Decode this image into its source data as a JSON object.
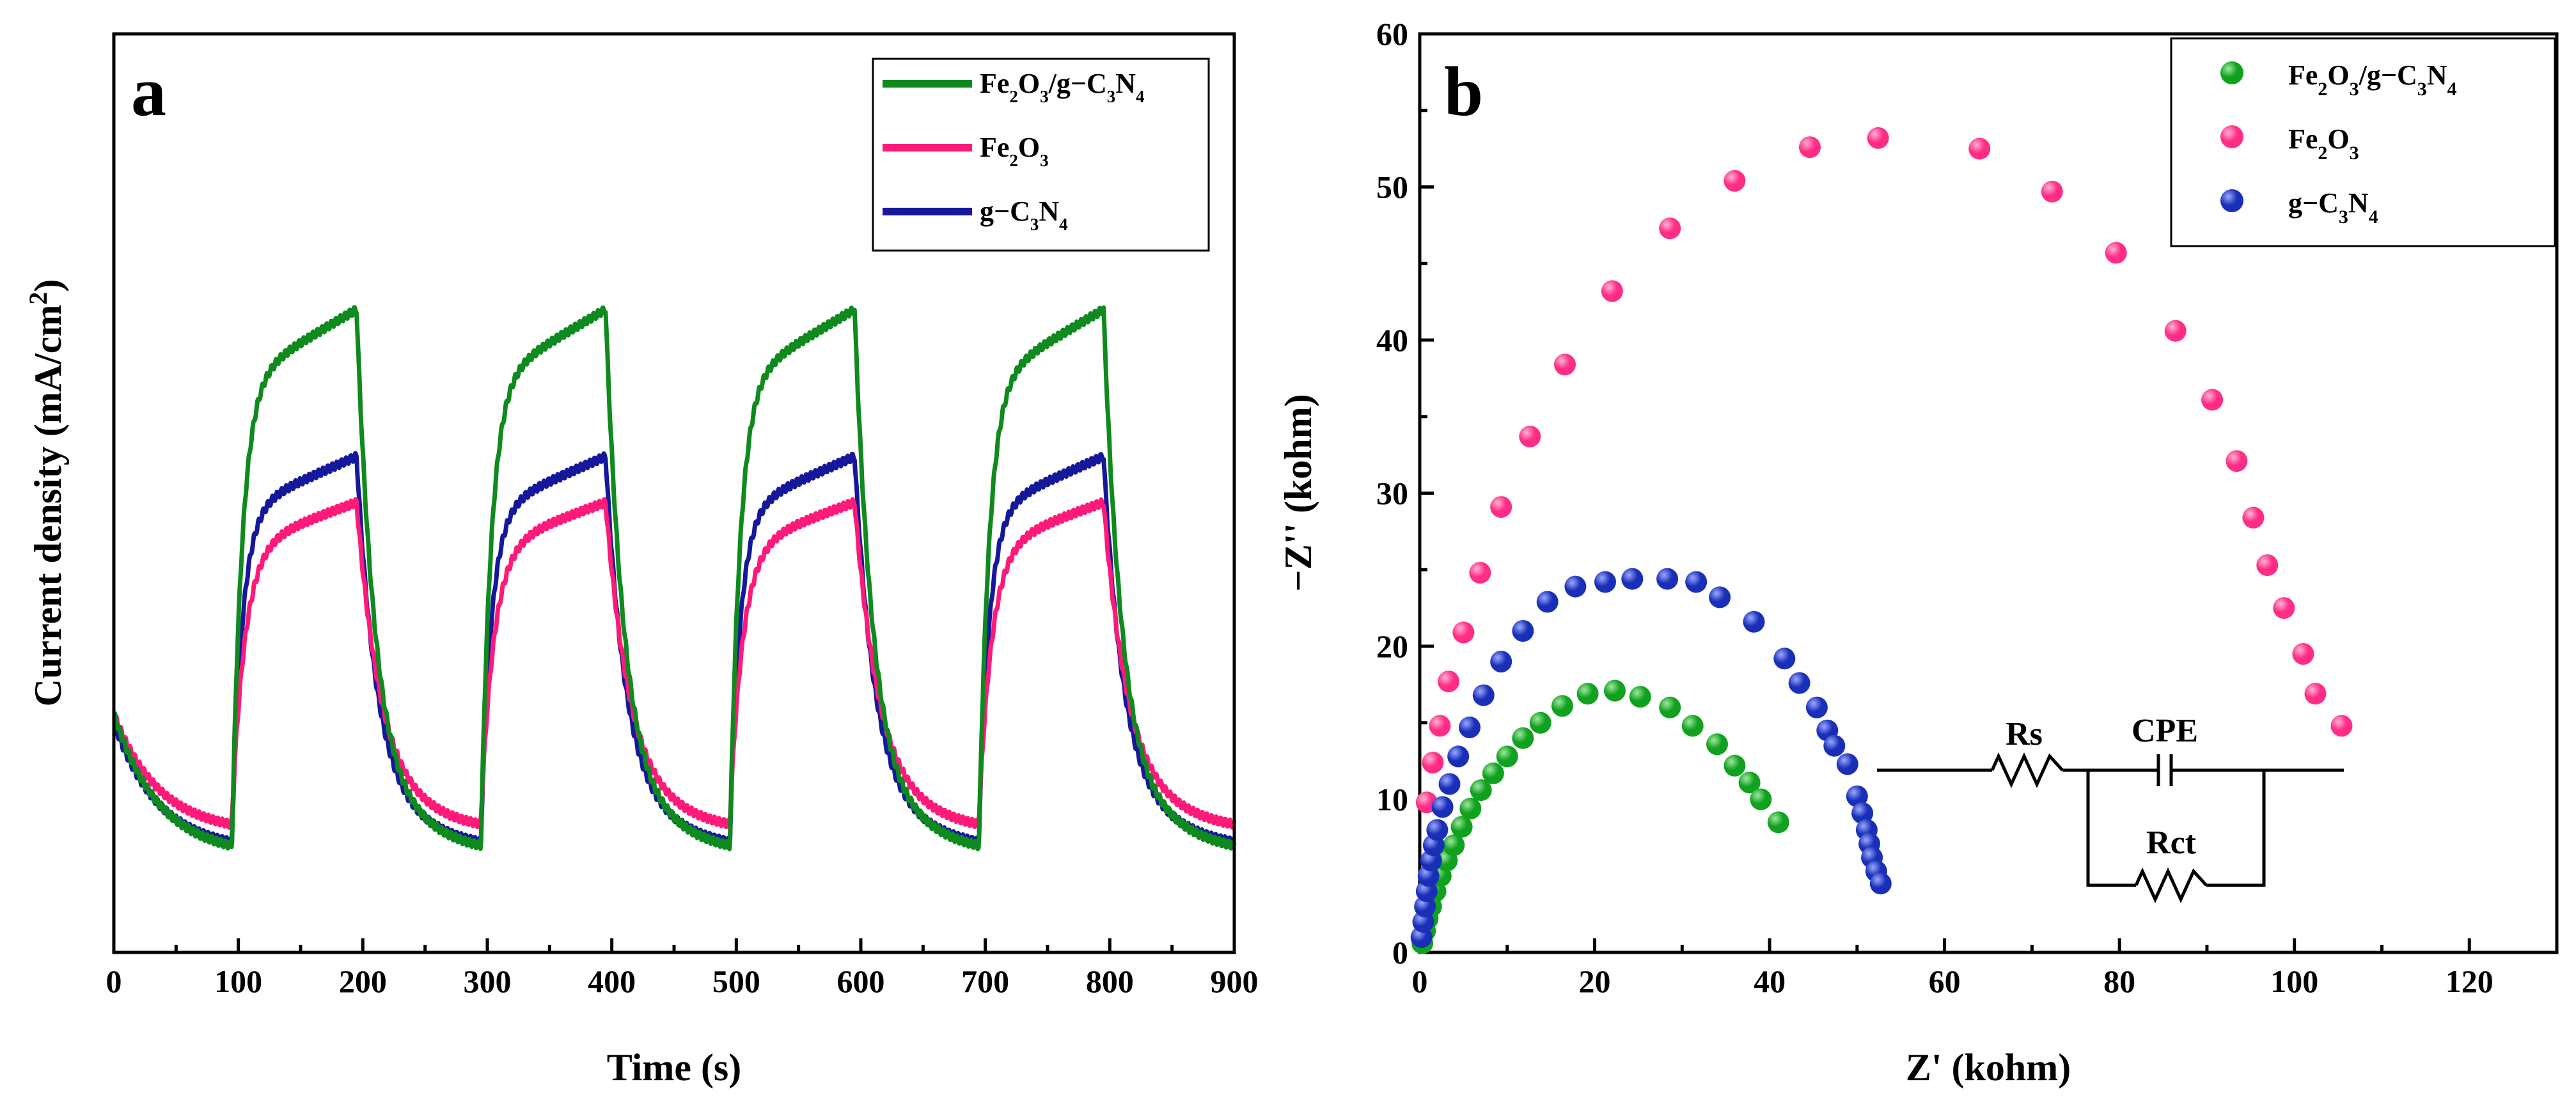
{
  "chart_data": [
    {
      "panel": "a",
      "type": "line",
      "title": "",
      "xlabel": "Time (s)",
      "ylabel": "Current density (mA/cm",
      "ylabel_sup": "2",
      "ylabel_close": ")",
      "xlim": [
        0,
        900
      ],
      "ylim": [
        0,
        1
      ],
      "xticks": [
        0,
        100,
        200,
        300,
        400,
        500,
        600,
        700,
        800,
        900
      ],
      "yticks_visible": false,
      "legend_position": "top-right",
      "legend": [
        {
          "key": "fe2o3_gc3n4",
          "parts": [
            [
              "Fe",
              ""
            ],
            [
              "2",
              "sub"
            ],
            [
              "O",
              ""
            ],
            [
              "3",
              "sub"
            ],
            [
              "/g−C",
              ""
            ],
            [
              "3",
              "sub"
            ],
            [
              "N",
              ""
            ],
            [
              "4",
              "sub"
            ]
          ]
        },
        {
          "key": "fe2o3",
          "parts": [
            [
              "Fe",
              ""
            ],
            [
              "2",
              "sub"
            ],
            [
              "O",
              ""
            ],
            [
              "3",
              "sub"
            ]
          ]
        },
        {
          "key": "gc3n4",
          "parts": [
            [
              "g−C",
              ""
            ],
            [
              "3",
              "sub"
            ],
            [
              "N",
              ""
            ],
            [
              "4",
              "sub"
            ]
          ]
        }
      ],
      "series": [
        {
          "name": "Fe2O3/g-C3N4",
          "key": "fe2o3_gc3n4",
          "color": "#0f8a1e",
          "on_start": 0.62,
          "on_end": 0.7,
          "off_start": 0.26,
          "off_end": 0.105,
          "tau_on": 8,
          "tau_off": 12
        },
        {
          "name": "Fe2O3",
          "key": "fe2o3",
          "color": "#ff1a7a",
          "on_start": 0.44,
          "on_end": 0.49,
          "off_start": 0.26,
          "off_end": 0.13,
          "tau_on": 10,
          "tau_off": 14
        },
        {
          "name": "g-C3N4",
          "key": "gc3n4",
          "color": "#16189c",
          "on_start": 0.48,
          "on_end": 0.54,
          "off_start": 0.25,
          "off_end": 0.11,
          "tau_on": 8,
          "tau_off": 12
        }
      ],
      "light_on_intervals": [
        [
          95,
          195
        ],
        [
          295,
          395
        ],
        [
          495,
          595
        ],
        [
          695,
          795
        ]
      ]
    },
    {
      "panel": "b",
      "type": "scatter",
      "title": "",
      "xlabel": "Z' (kohm)",
      "ylabel": "−Z'' (kohm)",
      "xlim": [
        0,
        130
      ],
      "ylim": [
        0,
        60
      ],
      "xticks": [
        0,
        20,
        40,
        60,
        80,
        100,
        120
      ],
      "yticks": [
        0,
        10,
        20,
        30,
        40,
        50,
        60
      ],
      "legend_position": "top-right",
      "legend": [
        {
          "key": "fe2o3_gc3n4",
          "parts": [
            [
              "Fe",
              ""
            ],
            [
              "2",
              "sub"
            ],
            [
              "O",
              ""
            ],
            [
              "3",
              "sub"
            ],
            [
              "/g−C",
              ""
            ],
            [
              "3",
              "sub"
            ],
            [
              "N",
              ""
            ],
            [
              "4",
              "sub"
            ]
          ]
        },
        {
          "key": "fe2o3",
          "parts": [
            [
              "Fe",
              ""
            ],
            [
              "2",
              "sub"
            ],
            [
              "O",
              ""
            ],
            [
              "3",
              "sub"
            ]
          ]
        },
        {
          "key": "gc3n4",
          "parts": [
            [
              "g−C",
              ""
            ],
            [
              "3",
              "sub"
            ],
            [
              "N",
              ""
            ],
            [
              "4",
              "sub"
            ]
          ]
        }
      ],
      "series": [
        {
          "name": "Fe2O3/g-C3N4",
          "key": "fe2o3_gc3n4",
          "color": "#10a11f",
          "highlight": "#9fe89f",
          "points": [
            [
              0.3,
              0.6
            ],
            [
              0.6,
              1.4
            ],
            [
              0.9,
              2.2
            ],
            [
              1.3,
              3.0
            ],
            [
              1.8,
              4.0
            ],
            [
              2.4,
              5.0
            ],
            [
              3.1,
              6.0
            ],
            [
              3.9,
              7.0
            ],
            [
              4.8,
              8.2
            ],
            [
              5.8,
              9.4
            ],
            [
              7.0,
              10.6
            ],
            [
              8.4,
              11.7
            ],
            [
              10.0,
              12.8
            ],
            [
              11.8,
              14.0
            ],
            [
              13.8,
              15.0
            ],
            [
              16.3,
              16.1
            ],
            [
              19.2,
              16.9
            ],
            [
              22.3,
              17.1
            ],
            [
              25.2,
              16.7
            ],
            [
              28.6,
              16.0
            ],
            [
              31.2,
              14.8
            ],
            [
              34.0,
              13.6
            ],
            [
              36.0,
              12.2
            ],
            [
              37.7,
              11.1
            ],
            [
              39.0,
              10.0
            ],
            [
              41.0,
              8.5
            ]
          ]
        },
        {
          "name": "Fe2O3",
          "key": "fe2o3",
          "color": "#ff2d86",
          "highlight": "#ffb3d4",
          "points": [
            [
              0.8,
              9.8
            ],
            [
              1.5,
              12.4
            ],
            [
              2.3,
              14.8
            ],
            [
              3.3,
              17.7
            ],
            [
              5.0,
              20.9
            ],
            [
              6.9,
              24.8
            ],
            [
              9.3,
              29.1
            ],
            [
              12.6,
              33.7
            ],
            [
              16.6,
              38.4
            ],
            [
              22.0,
              43.2
            ],
            [
              28.6,
              47.3
            ],
            [
              36.0,
              50.4
            ],
            [
              44.6,
              52.6
            ],
            [
              52.4,
              53.2
            ],
            [
              64.0,
              52.5
            ],
            [
              72.3,
              49.7
            ],
            [
              79.6,
              45.7
            ],
            [
              86.4,
              40.6
            ],
            [
              90.6,
              36.1
            ],
            [
              93.4,
              32.1
            ],
            [
              95.3,
              28.4
            ],
            [
              96.9,
              25.3
            ],
            [
              98.8,
              22.5
            ],
            [
              101.0,
              19.5
            ],
            [
              102.4,
              16.9
            ],
            [
              105.4,
              14.8
            ]
          ]
        },
        {
          "name": "g-C3N4",
          "key": "gc3n4",
          "color": "#1a2fb8",
          "highlight": "#9aa8ff",
          "points": [
            [
              0.2,
              1.0
            ],
            [
              0.4,
              2.0
            ],
            [
              0.6,
              3.0
            ],
            [
              0.8,
              4.0
            ],
            [
              1.0,
              5.0
            ],
            [
              1.3,
              6.0
            ],
            [
              1.6,
              7.0
            ],
            [
              2.0,
              8.0
            ],
            [
              2.6,
              9.5
            ],
            [
              3.4,
              11.0
            ],
            [
              4.4,
              12.8
            ],
            [
              5.7,
              14.7
            ],
            [
              7.3,
              16.8
            ],
            [
              9.3,
              19.0
            ],
            [
              11.8,
              21.0
            ],
            [
              14.6,
              22.9
            ],
            [
              17.8,
              23.9
            ],
            [
              21.2,
              24.2
            ],
            [
              24.3,
              24.4
            ],
            [
              28.3,
              24.4
            ],
            [
              31.6,
              24.2
            ],
            [
              34.3,
              23.2
            ],
            [
              38.2,
              21.6
            ],
            [
              41.7,
              19.2
            ],
            [
              43.4,
              17.6
            ],
            [
              45.4,
              16.0
            ],
            [
              46.6,
              14.5
            ],
            [
              47.4,
              13.5
            ],
            [
              48.9,
              12.3
            ],
            [
              50.0,
              10.2
            ],
            [
              50.6,
              9.1
            ],
            [
              51.1,
              8.0
            ],
            [
              51.4,
              7.1
            ],
            [
              51.7,
              6.2
            ],
            [
              52.2,
              5.3
            ],
            [
              52.7,
              4.5
            ]
          ]
        }
      ],
      "inset_circuit": {
        "rs_label": "Rs",
        "cpe_label": "CPE",
        "rct_label": "Rct"
      }
    }
  ]
}
